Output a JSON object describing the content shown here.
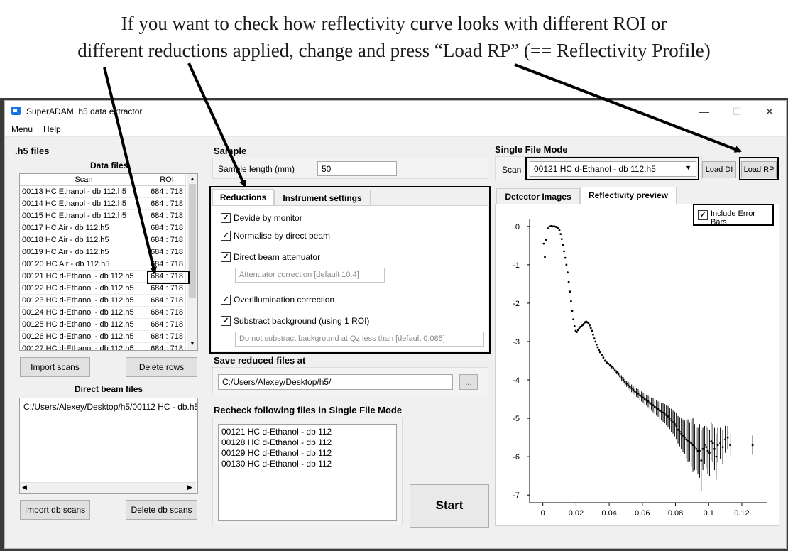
{
  "annotation": {
    "line1": "If  you want to check how reflectivity curve looks with different ROI or",
    "line2": "different reductions applied, change and press “Load RP” (== Reflectivity Profile)"
  },
  "window": {
    "title": "SuperADAM .h5 data extractor",
    "minimize": "—",
    "maximize": "☐",
    "close": "✕"
  },
  "menu": {
    "items": [
      "Menu",
      "Help"
    ]
  },
  "h5_files": {
    "title": ".h5 files",
    "data_files_title": "Data files",
    "columns": [
      "Scan",
      "ROI"
    ],
    "rows": [
      {
        "scan": "00113 HC Ethanol - db 112.h5",
        "roi": "684 : 718"
      },
      {
        "scan": "00114 HC Ethanol - db 112.h5",
        "roi": "684 : 718"
      },
      {
        "scan": "00115 HC Ethanol - db 112.h5",
        "roi": "684 : 718"
      },
      {
        "scan": "00117 HC Air - db 112.h5",
        "roi": "684 : 718"
      },
      {
        "scan": "00118 HC Air - db 112.h5",
        "roi": "684 : 718"
      },
      {
        "scan": "00119 HC Air - db 112.h5",
        "roi": "684 : 718"
      },
      {
        "scan": "00120 HC Air - db 112.h5",
        "roi": "684 : 718"
      },
      {
        "scan": "00121 HC d-Ethanol - db 112.h5",
        "roi": "684 : 718"
      },
      {
        "scan": "00122 HC d-Ethanol - db 112.h5",
        "roi": "684 : 718"
      },
      {
        "scan": "00123 HC d-Ethanol - db 112.h5",
        "roi": "684 : 718"
      },
      {
        "scan": "00124 HC d-Ethanol - db 112.h5",
        "roi": "684 : 718"
      },
      {
        "scan": "00125 HC d-Ethanol - db 112.h5",
        "roi": "684 : 718"
      },
      {
        "scan": "00126 HC d-Ethanol - db 112.h5",
        "roi": "684 : 718"
      },
      {
        "scan": "00127 HC d-Ethanol - db 112.h5",
        "roi": "684 : 718"
      }
    ],
    "import_scans": "Import scans",
    "delete_rows": "Delete rows",
    "direct_beam_title": "Direct beam files",
    "direct_beam_files": [
      "C:/Users/Alexey/Desktop/h5/00112 HC - db.h5"
    ],
    "import_db": "Import db scans",
    "delete_db": "Delete db scans"
  },
  "sample": {
    "title": "Sample",
    "length_label": "Sample length (mm)",
    "length_value": "50"
  },
  "reductions": {
    "tabs": [
      "Reductions",
      "Instrument settings"
    ],
    "options": [
      {
        "label": "Devide by monitor",
        "checked": "✓"
      },
      {
        "label": "Normalise by direct beam",
        "checked": "✓"
      },
      {
        "label": "Direct beam attenuator",
        "checked": "✓"
      },
      {
        "label": "Overillumination correction",
        "checked": "✓"
      },
      {
        "label": "Substract background (using 1 ROI)",
        "checked": "✓"
      }
    ],
    "attenuator_placeholder": "Attenuator correction [default 10.4]",
    "background_placeholder": "Do not substract background at Qz less than [default 0.085]"
  },
  "save": {
    "title": "Save reduced files at",
    "path": "C:/Users/Alexey/Desktop/h5/",
    "browse": "..."
  },
  "recheck": {
    "title": "Recheck following files in Single File Mode",
    "files": [
      "00121 HC d-Ethanol - db 112",
      "00128 HC d-Ethanol - db 112",
      "00129 HC d-Ethanol - db 112",
      "00130 HC d-Ethanol - db 112"
    ]
  },
  "start": "Start",
  "single_file": {
    "title": "Single File Mode",
    "scan_label": "Scan",
    "scan_value": "00121 HC d-Ethanol - db 112.h5",
    "load_di": "Load DI",
    "load_rp": "Load RP",
    "tabs": [
      "Detector Images",
      "Reflectivity preview"
    ],
    "error_bars_label": "Include Error Bars",
    "error_bars_checked": "✓"
  },
  "chart_data": {
    "type": "scatter",
    "title": "",
    "xlabel": "",
    "ylabel": "",
    "xlim": [
      -0.008,
      0.135
    ],
    "ylim": [
      -7.2,
      0.2
    ],
    "xticks": [
      0,
      0.02,
      0.04,
      0.06,
      0.08,
      0.1,
      0.12
    ],
    "xtick_labels": [
      "0",
      "0.02",
      "0.04",
      "0.06",
      "0.08",
      "0.1",
      "0.12"
    ],
    "yticks": [
      0,
      -1,
      -2,
      -3,
      -4,
      -5,
      -6,
      -7
    ],
    "ytick_labels": [
      "0",
      "-1",
      "-2",
      "-3",
      "-4",
      "-5",
      "-6",
      "-7"
    ],
    "grid": false,
    "color": "#000000",
    "series": [
      {
        "x": [
          0.0005,
          0.0012,
          0.002,
          0.003,
          0.004,
          0.005,
          0.006,
          0.007,
          0.0078,
          0.0085,
          0.0092,
          0.01,
          0.0107,
          0.0114,
          0.0121,
          0.0128,
          0.0135,
          0.0142,
          0.0149,
          0.0156,
          0.0163,
          0.017,
          0.0177,
          0.0184,
          0.0191,
          0.0198,
          0.0205,
          0.0212,
          0.0219,
          0.0226,
          0.0233,
          0.024,
          0.0247,
          0.0254,
          0.0261,
          0.0268,
          0.0275,
          0.0282,
          0.0289,
          0.0296,
          0.0303,
          0.031,
          0.0317,
          0.0324,
          0.0331,
          0.0338,
          0.0345,
          0.0355,
          0.0365,
          0.0375,
          0.0385,
          0.0395,
          0.0405,
          0.0415,
          0.0425,
          0.0435,
          0.0445,
          0.0455,
          0.0465,
          0.0475,
          0.0485,
          0.0495,
          0.0505,
          0.0515,
          0.0525,
          0.0535,
          0.0545,
          0.0555,
          0.0565,
          0.0575,
          0.0585,
          0.0595,
          0.0605,
          0.0615,
          0.0625,
          0.0635,
          0.0645,
          0.0655,
          0.0665,
          0.0675,
          0.0685,
          0.0695,
          0.0705,
          0.0715,
          0.0725,
          0.0735,
          0.0745,
          0.0755,
          0.0765,
          0.0775,
          0.0785,
          0.0795,
          0.0805,
          0.0815,
          0.0825,
          0.0835,
          0.0845,
          0.0855,
          0.0865,
          0.0875,
          0.0885,
          0.0895,
          0.0905,
          0.0915,
          0.0925,
          0.0935,
          0.0945,
          0.0955,
          0.0965,
          0.0975,
          0.0985,
          0.0995,
          0.1005,
          0.1015,
          0.1025,
          0.1035,
          0.1045,
          0.1055,
          0.107,
          0.1085,
          0.11,
          0.1115,
          0.113,
          0.1265
        ],
        "y": [
          -0.45,
          -0.8,
          -0.35,
          -0.05,
          0.0,
          0.01,
          0.0,
          0.0,
          -0.01,
          -0.02,
          -0.05,
          -0.1,
          -0.2,
          -0.33,
          -0.48,
          -0.65,
          -0.82,
          -1.0,
          -1.2,
          -1.45,
          -1.7,
          -1.95,
          -2.2,
          -2.42,
          -2.6,
          -2.72,
          -2.75,
          -2.7,
          -2.66,
          -2.62,
          -2.6,
          -2.57,
          -2.54,
          -2.5,
          -2.48,
          -2.5,
          -2.52,
          -2.58,
          -2.65,
          -2.72,
          -2.82,
          -2.92,
          -3.0,
          -3.08,
          -3.15,
          -3.22,
          -3.28,
          -3.35,
          -3.42,
          -3.5,
          -3.55,
          -3.58,
          -3.62,
          -3.66,
          -3.7,
          -3.75,
          -3.8,
          -3.85,
          -3.9,
          -3.95,
          -4.0,
          -4.05,
          -4.1,
          -4.14,
          -4.18,
          -4.22,
          -4.26,
          -4.3,
          -4.33,
          -4.36,
          -4.4,
          -4.43,
          -4.46,
          -4.5,
          -4.53,
          -4.56,
          -4.6,
          -4.63,
          -4.66,
          -4.7,
          -4.73,
          -4.76,
          -4.8,
          -4.82,
          -4.85,
          -4.88,
          -4.92,
          -4.95,
          -5.0,
          -5.05,
          -5.1,
          -5.15,
          -5.2,
          -5.3,
          -5.35,
          -5.4,
          -5.45,
          -5.5,
          -5.55,
          -5.58,
          -5.62,
          -5.65,
          -5.7,
          -5.75,
          -5.8,
          -5.85,
          -5.85,
          -6.1,
          -5.8,
          -5.7,
          -5.75,
          -5.85,
          -5.9,
          -5.6,
          -5.65,
          -5.8,
          -6.0,
          -5.7,
          -5.65,
          -5.75,
          -5.55,
          -5.5,
          -5.7,
          -5.7
        ],
        "err": [
          0.02,
          0.02,
          0.02,
          0.01,
          0.01,
          0.01,
          0.01,
          0.01,
          0.01,
          0.01,
          0.01,
          0.01,
          0.01,
          0.01,
          0.01,
          0.01,
          0.01,
          0.01,
          0.01,
          0.01,
          0.01,
          0.01,
          0.01,
          0.01,
          0.01,
          0.01,
          0.01,
          0.01,
          0.01,
          0.01,
          0.01,
          0.01,
          0.01,
          0.01,
          0.01,
          0.01,
          0.01,
          0.01,
          0.01,
          0.01,
          0.01,
          0.01,
          0.01,
          0.01,
          0.01,
          0.01,
          0.02,
          0.02,
          0.02,
          0.03,
          0.03,
          0.03,
          0.04,
          0.04,
          0.04,
          0.05,
          0.05,
          0.06,
          0.06,
          0.07,
          0.07,
          0.08,
          0.08,
          0.09,
          0.09,
          0.1,
          0.1,
          0.11,
          0.11,
          0.12,
          0.12,
          0.13,
          0.13,
          0.14,
          0.14,
          0.15,
          0.16,
          0.17,
          0.18,
          0.19,
          0.2,
          0.2,
          0.22,
          0.22,
          0.24,
          0.25,
          0.26,
          0.27,
          0.28,
          0.3,
          0.3,
          0.32,
          0.34,
          0.36,
          0.38,
          0.4,
          0.42,
          0.44,
          0.5,
          0.55,
          0.5,
          0.6,
          0.7,
          0.6,
          0.55,
          0.6,
          0.7,
          0.8,
          0.55,
          0.5,
          0.55,
          0.6,
          0.6,
          0.5,
          0.5,
          0.55,
          0.6,
          0.45,
          0.4,
          0.45,
          0.35,
          0.3,
          0.3,
          0.25
        ]
      }
    ]
  }
}
